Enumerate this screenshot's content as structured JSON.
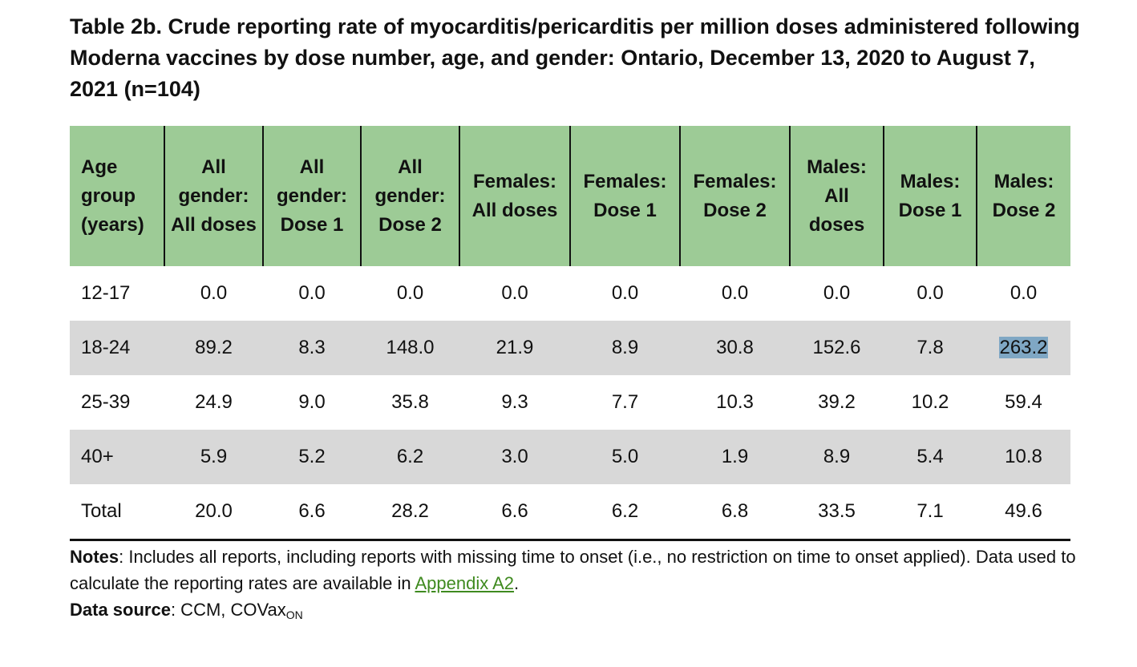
{
  "title": "Table 2b. Crude reporting rate of myocarditis/pericarditis per million doses administered following Moderna vaccines by dose number, age, and gender: Ontario, December 13, 2020 to August 7, 2021 (n=104)",
  "headers": [
    "Age group (years)",
    "All gender: All doses",
    "All gender: Dose 1",
    "All gender: Dose 2",
    "Females: All doses",
    "Females: Dose 1",
    "Females: Dose 2",
    "Males: All doses",
    "Males: Dose 1",
    "Males: Dose 2"
  ],
  "rows": [
    [
      "12-17",
      "0.0",
      "0.0",
      "0.0",
      "0.0",
      "0.0",
      "0.0",
      "0.0",
      "0.0",
      "0.0"
    ],
    [
      "18-24",
      "89.2",
      "8.3",
      "148.0",
      "21.9",
      "8.9",
      "30.8",
      "152.6",
      "7.8",
      "263.2"
    ],
    [
      "25-39",
      "24.9",
      "9.0",
      "35.8",
      "9.3",
      "7.7",
      "10.3",
      "39.2",
      "10.2",
      "59.4"
    ],
    [
      "40+",
      "5.9",
      "5.2",
      "6.2",
      "3.0",
      "5.0",
      "1.9",
      "8.9",
      "5.4",
      "10.8"
    ],
    [
      "Total",
      "20.0",
      "6.6",
      "28.2",
      "6.6",
      "6.2",
      "6.8",
      "33.5",
      "7.1",
      "49.6"
    ]
  ],
  "notes": {
    "label": "Notes",
    "text": ": Includes all reports, including reports with missing time to onset (i.e., no restriction on time to onset applied). Data used to calculate the reporting rates are available in ",
    "link": "Appendix A2",
    "end": "."
  },
  "source": {
    "label": "Data source",
    "text": ": CCM, COVax",
    "sub": "ON"
  },
  "colors": {
    "header_bg": "#9dcb96",
    "stripe_bg": "#d8d8d8",
    "highlight": "#7fa7c4",
    "link": "#3f8a1f"
  }
}
